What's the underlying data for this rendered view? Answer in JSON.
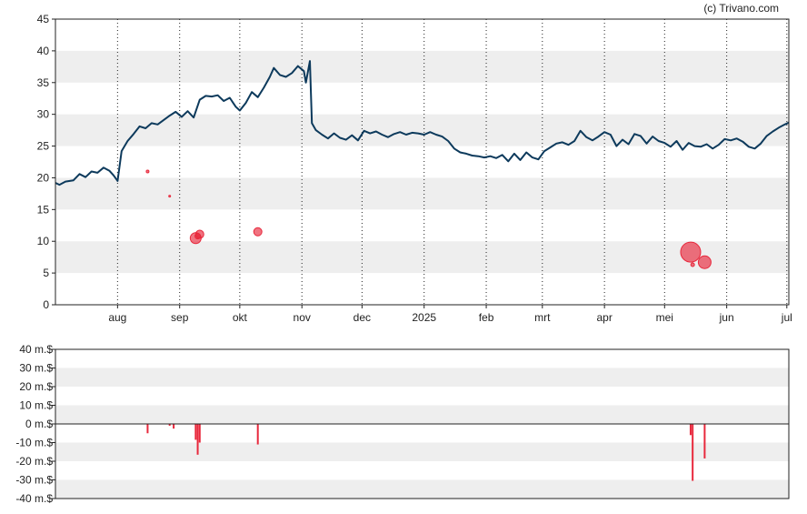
{
  "credit": "(c) Trivano.com",
  "chart_data": [
    {
      "type": "line",
      "role": "price",
      "ylim": [
        0,
        45
      ],
      "yticks": [
        0,
        5,
        10,
        15,
        20,
        25,
        30,
        35,
        40,
        45
      ],
      "grid": "alternating horizontal bands, dotted vertical month lines",
      "xlim": [
        "2024-07-01",
        "2025-07-02"
      ],
      "x_ticks": [
        {
          "date": "2024-08-01",
          "label": "aug"
        },
        {
          "date": "2024-09-01",
          "label": "sep"
        },
        {
          "date": "2024-10-01",
          "label": "okt"
        },
        {
          "date": "2024-11-01",
          "label": "nov"
        },
        {
          "date": "2024-12-01",
          "label": "dec"
        },
        {
          "date": "2025-01-01",
          "label": "2025"
        },
        {
          "date": "2025-02-01",
          "label": "feb"
        },
        {
          "date": "2025-03-01",
          "label": "mrt"
        },
        {
          "date": "2025-04-01",
          "label": "apr"
        },
        {
          "date": "2025-05-01",
          "label": "mei"
        },
        {
          "date": "2025-06-01",
          "label": "jun"
        },
        {
          "date": "2025-07-01",
          "label": "jul"
        }
      ],
      "series": [
        {
          "color": "#0d3a5c",
          "points": [
            [
              "2024-07-01",
              19.2
            ],
            [
              "2024-07-03",
              18.9
            ],
            [
              "2024-07-06",
              19.4
            ],
            [
              "2024-07-10",
              19.6
            ],
            [
              "2024-07-13",
              20.6
            ],
            [
              "2024-07-16",
              20.1
            ],
            [
              "2024-07-19",
              21.0
            ],
            [
              "2024-07-22",
              20.8
            ],
            [
              "2024-07-25",
              21.6
            ],
            [
              "2024-07-28",
              21.1
            ],
            [
              "2024-07-30",
              20.4
            ],
            [
              "2024-08-01",
              19.5
            ],
            [
              "2024-08-03",
              24.2
            ],
            [
              "2024-08-06",
              25.8
            ],
            [
              "2024-08-09",
              26.9
            ],
            [
              "2024-08-12",
              28.1
            ],
            [
              "2024-08-15",
              27.8
            ],
            [
              "2024-08-18",
              28.6
            ],
            [
              "2024-08-21",
              28.4
            ],
            [
              "2024-08-24",
              29.1
            ],
            [
              "2024-08-27",
              29.8
            ],
            [
              "2024-08-30",
              30.4
            ],
            [
              "2024-09-02",
              29.6
            ],
            [
              "2024-09-05",
              30.5
            ],
            [
              "2024-09-08",
              29.5
            ],
            [
              "2024-09-11",
              32.3
            ],
            [
              "2024-09-14",
              32.9
            ],
            [
              "2024-09-17",
              32.8
            ],
            [
              "2024-09-20",
              33.0
            ],
            [
              "2024-09-23",
              32.1
            ],
            [
              "2024-09-26",
              32.6
            ],
            [
              "2024-09-29",
              31.2
            ],
            [
              "2024-10-01",
              30.6
            ],
            [
              "2024-10-04",
              31.8
            ],
            [
              "2024-10-07",
              33.5
            ],
            [
              "2024-10-10",
              32.7
            ],
            [
              "2024-10-13",
              34.2
            ],
            [
              "2024-10-16",
              35.9
            ],
            [
              "2024-10-18",
              37.3
            ],
            [
              "2024-10-21",
              36.2
            ],
            [
              "2024-10-24",
              35.9
            ],
            [
              "2024-10-27",
              36.5
            ],
            [
              "2024-10-30",
              37.6
            ],
            [
              "2024-11-02",
              36.8
            ],
            [
              "2024-11-03",
              35.0
            ],
            [
              "2024-11-05",
              38.4
            ],
            [
              "2024-11-06",
              28.6
            ],
            [
              "2024-11-08",
              27.5
            ],
            [
              "2024-11-11",
              26.8
            ],
            [
              "2024-11-14",
              26.2
            ],
            [
              "2024-11-17",
              27.0
            ],
            [
              "2024-11-20",
              26.3
            ],
            [
              "2024-11-23",
              26.0
            ],
            [
              "2024-11-26",
              26.7
            ],
            [
              "2024-11-29",
              25.9
            ],
            [
              "2024-12-02",
              27.4
            ],
            [
              "2024-12-05",
              27.0
            ],
            [
              "2024-12-08",
              27.3
            ],
            [
              "2024-12-11",
              26.8
            ],
            [
              "2024-12-14",
              26.4
            ],
            [
              "2024-12-17",
              26.9
            ],
            [
              "2024-12-20",
              27.2
            ],
            [
              "2024-12-23",
              26.8
            ],
            [
              "2024-12-26",
              27.1
            ],
            [
              "2024-12-29",
              27.0
            ],
            [
              "2025-01-01",
              26.8
            ],
            [
              "2025-01-04",
              27.2
            ],
            [
              "2025-01-07",
              26.8
            ],
            [
              "2025-01-10",
              26.5
            ],
            [
              "2025-01-13",
              25.8
            ],
            [
              "2025-01-16",
              24.6
            ],
            [
              "2025-01-19",
              24.0
            ],
            [
              "2025-01-22",
              23.8
            ],
            [
              "2025-01-25",
              23.5
            ],
            [
              "2025-01-28",
              23.4
            ],
            [
              "2025-01-31",
              23.2
            ],
            [
              "2025-02-03",
              23.4
            ],
            [
              "2025-02-06",
              23.1
            ],
            [
              "2025-02-09",
              23.6
            ],
            [
              "2025-02-12",
              22.6
            ],
            [
              "2025-02-15",
              23.8
            ],
            [
              "2025-02-18",
              22.8
            ],
            [
              "2025-02-21",
              24.0
            ],
            [
              "2025-02-24",
              23.2
            ],
            [
              "2025-02-27",
              22.9
            ],
            [
              "2025-03-02",
              24.2
            ],
            [
              "2025-03-05",
              24.8
            ],
            [
              "2025-03-08",
              25.4
            ],
            [
              "2025-03-11",
              25.6
            ],
            [
              "2025-03-14",
              25.2
            ],
            [
              "2025-03-17",
              25.8
            ],
            [
              "2025-03-20",
              27.4
            ],
            [
              "2025-03-23",
              26.4
            ],
            [
              "2025-03-26",
              25.9
            ],
            [
              "2025-03-29",
              26.5
            ],
            [
              "2025-04-01",
              27.2
            ],
            [
              "2025-04-04",
              26.8
            ],
            [
              "2025-04-07",
              25.0
            ],
            [
              "2025-04-10",
              26.0
            ],
            [
              "2025-04-13",
              25.3
            ],
            [
              "2025-04-16",
              26.9
            ],
            [
              "2025-04-19",
              26.6
            ],
            [
              "2025-04-22",
              25.4
            ],
            [
              "2025-04-25",
              26.5
            ],
            [
              "2025-04-28",
              25.8
            ],
            [
              "2025-05-01",
              25.5
            ],
            [
              "2025-05-04",
              24.9
            ],
            [
              "2025-05-07",
              25.8
            ],
            [
              "2025-05-10",
              24.4
            ],
            [
              "2025-05-13",
              25.5
            ],
            [
              "2025-05-16",
              25.0
            ],
            [
              "2025-05-19",
              24.9
            ],
            [
              "2025-05-22",
              25.3
            ],
            [
              "2025-05-25",
              24.6
            ],
            [
              "2025-05-28",
              25.2
            ],
            [
              "2025-05-31",
              26.1
            ],
            [
              "2025-06-03",
              25.9
            ],
            [
              "2025-06-06",
              26.2
            ],
            [
              "2025-06-09",
              25.7
            ],
            [
              "2025-06-12",
              24.9
            ],
            [
              "2025-06-15",
              24.6
            ],
            [
              "2025-06-18",
              25.4
            ],
            [
              "2025-06-21",
              26.6
            ],
            [
              "2025-06-24",
              27.3
            ],
            [
              "2025-06-27",
              27.9
            ],
            [
              "2025-06-30",
              28.4
            ],
            [
              "2025-07-02",
              28.7
            ]
          ]
        }
      ],
      "bubbles": {
        "color": "#e8283c",
        "points": [
          {
            "date": "2024-08-16",
            "y": 21.0,
            "size": 1.5
          },
          {
            "date": "2024-08-27",
            "y": 17.1,
            "size": 1.0
          },
          {
            "date": "2024-09-09",
            "y": 10.5,
            "size": 6.0
          },
          {
            "date": "2024-09-10",
            "y": 10.8,
            "size": 3.0
          },
          {
            "date": "2024-09-11",
            "y": 11.1,
            "size": 4.5
          },
          {
            "date": "2024-10-10",
            "y": 11.5,
            "size": 4.5
          },
          {
            "date": "2025-05-14",
            "y": 8.3,
            "size": 11.0
          },
          {
            "date": "2025-05-15",
            "y": 6.3,
            "size": 2.0
          },
          {
            "date": "2025-05-21",
            "y": 6.7,
            "size": 7.0
          }
        ]
      }
    },
    {
      "type": "bar",
      "role": "volume",
      "ylim": [
        -40,
        40
      ],
      "yticks": [
        {
          "value": 40,
          "label": "40 m.$"
        },
        {
          "value": 30,
          "label": "30 m.$"
        },
        {
          "value": 20,
          "label": "20 m.$"
        },
        {
          "value": 10,
          "label": "10 m.$"
        },
        {
          "value": 0,
          "label": "0 m.$"
        },
        {
          "value": -10,
          "label": "-10 m.$"
        },
        {
          "value": -20,
          "label": "-20 m.$"
        },
        {
          "value": -30,
          "label": "-30 m.$"
        },
        {
          "value": -40,
          "label": "-40 m.$"
        }
      ],
      "color": "#e8283c",
      "bars": [
        {
          "date": "2024-08-16",
          "value": -5.0
        },
        {
          "date": "2024-08-27",
          "value": -1.0
        },
        {
          "date": "2024-08-29",
          "value": -2.5
        },
        {
          "date": "2024-09-09",
          "value": -8.5
        },
        {
          "date": "2024-09-10",
          "value": -16.5
        },
        {
          "date": "2024-09-11",
          "value": -10.0
        },
        {
          "date": "2024-10-10",
          "value": -11.0
        },
        {
          "date": "2025-05-14",
          "value": -6.0
        },
        {
          "date": "2025-05-15",
          "value": -30.5
        },
        {
          "date": "2025-05-21",
          "value": -18.5
        }
      ]
    }
  ]
}
